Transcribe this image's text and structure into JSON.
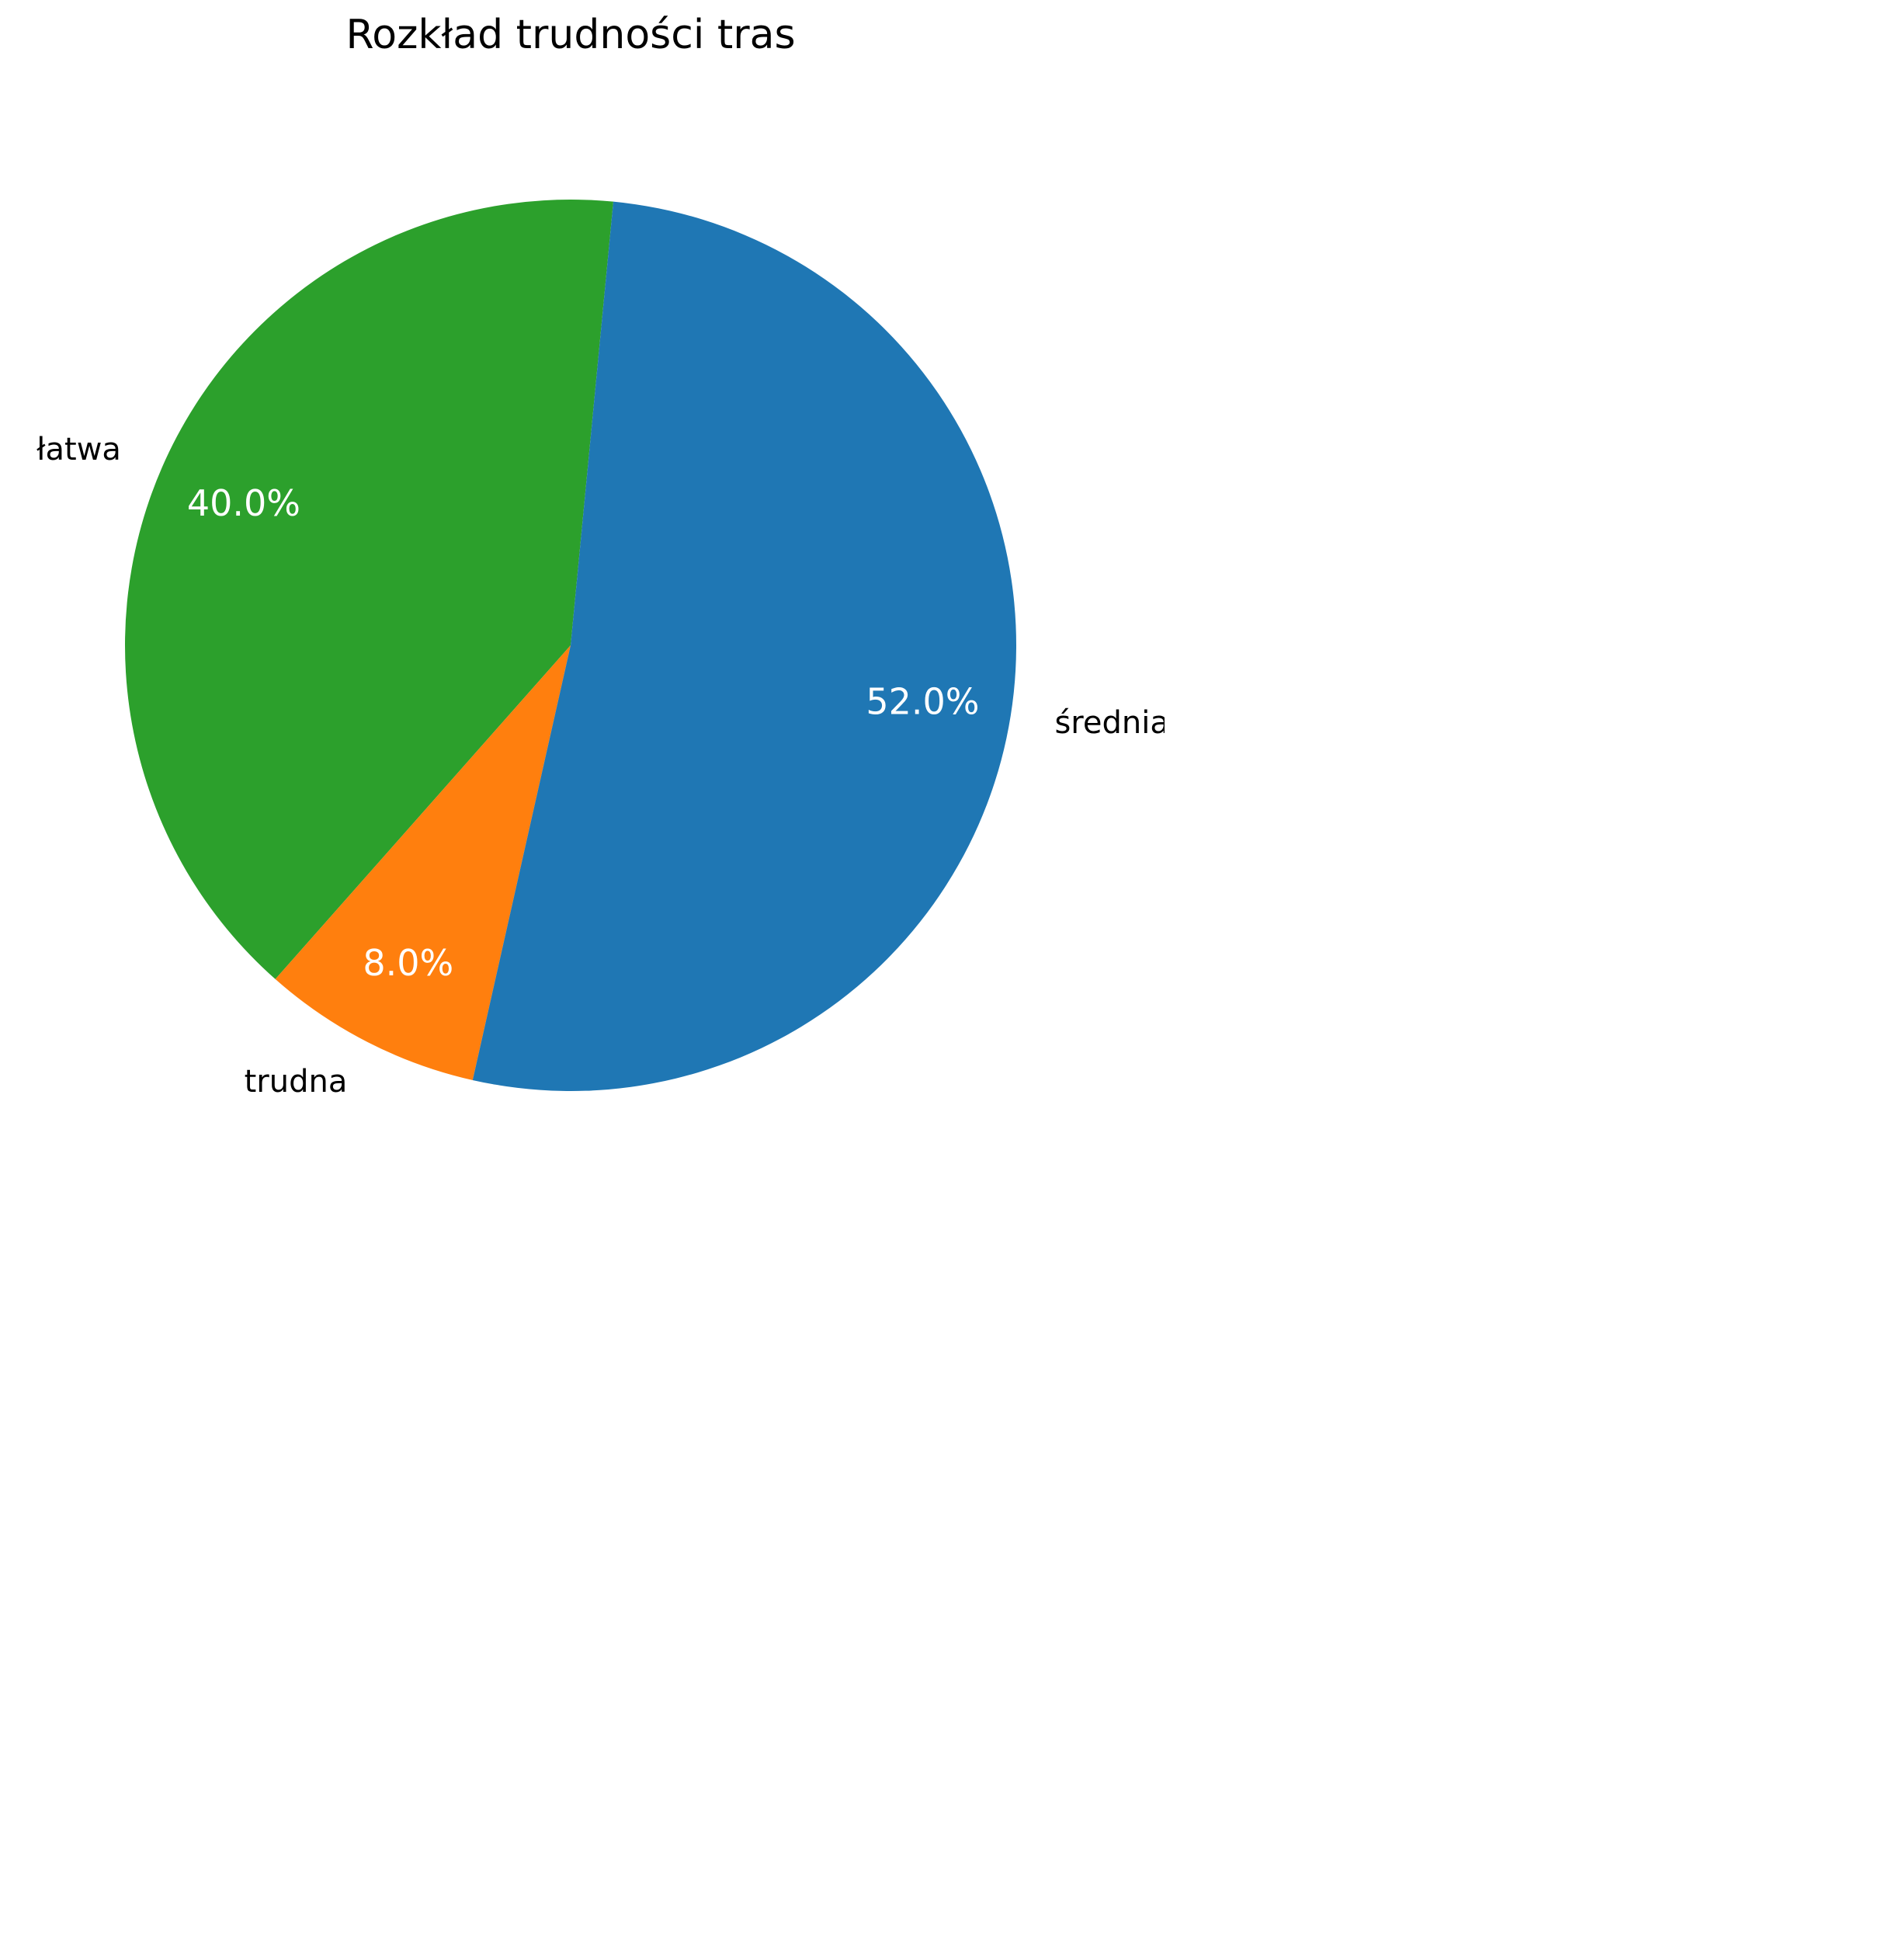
{
  "chart_data": {
    "type": "pie",
    "title": "Rozkład trudności tras",
    "slices": [
      {
        "label": "łatwa",
        "value": 40.0,
        "pct_label": "40.0%",
        "color": "#2ca02c"
      },
      {
        "label": "trudna",
        "value": 8.0,
        "pct_label": "8.0%",
        "color": "#ff7f0e"
      },
      {
        "label": "średnia",
        "value": 52.0,
        "pct_label": "52.0%",
        "color": "#1f77b4"
      }
    ]
  }
}
